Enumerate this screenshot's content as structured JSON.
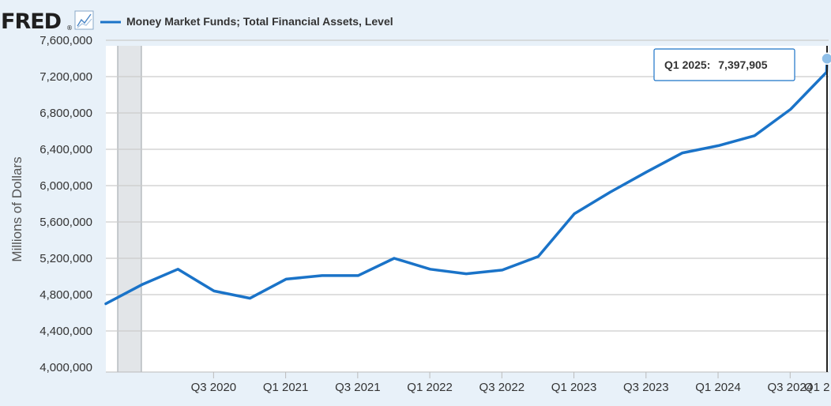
{
  "header": {
    "logo_text": "FRED",
    "logo_mark": "®",
    "logo_icon": "chart-line-icon"
  },
  "colors": {
    "background": "#e8f1f9",
    "plot_background": "#ffffff",
    "series_line": "#1a73c8",
    "gridline": "#cccccc",
    "recession_band": "#e2e5e8"
  },
  "tooltip": {
    "label": "Q1 2025:",
    "value": "7,397,905"
  },
  "chart_data": {
    "type": "line",
    "title": "",
    "xlabel": "",
    "ylabel": "Millions of Dollars",
    "ylim": [
      4000000,
      7600000
    ],
    "y_ticks": [
      4000000,
      4400000,
      4800000,
      5200000,
      5600000,
      6000000,
      6400000,
      6800000,
      7200000,
      7600000
    ],
    "y_tick_labels": [
      "4,000,000",
      "4,400,000",
      "4,800,000",
      "5,200,000",
      "5,600,000",
      "6,000,000",
      "6,400,000",
      "6,800,000",
      "7,200,000",
      "7,600,000"
    ],
    "x_tick_labels": [
      "Q3 2020",
      "Q1 2021",
      "Q3 2021",
      "Q1 2022",
      "Q3 2022",
      "Q1 2023",
      "Q3 2023",
      "Q1 2024",
      "Q3 2024",
      "Q1 2"
    ],
    "grid": true,
    "legend": "top-left",
    "recession_shading": {
      "start": "Q4 2019",
      "end": "Q2 2020"
    },
    "series": [
      {
        "name": "Money Market Funds; Total Financial Assets, Level",
        "x": [
          "Q4 2019",
          "Q1 2020",
          "Q2 2020",
          "Q3 2020",
          "Q4 2020",
          "Q1 2021",
          "Q2 2021",
          "Q3 2021",
          "Q4 2021",
          "Q1 2022",
          "Q2 2022",
          "Q3 2022",
          "Q4 2022",
          "Q1 2023",
          "Q2 2023",
          "Q3 2023",
          "Q4 2023",
          "Q1 2024",
          "Q2 2024",
          "Q3 2024",
          "Q4 2024",
          "Q1 2025"
        ],
        "values": [
          4700000,
          4910000,
          5080000,
          4840000,
          4760000,
          4970000,
          5010000,
          5010000,
          5200000,
          5080000,
          5030000,
          5070000,
          5220000,
          5690000,
          5930000,
          6150000,
          6360000,
          6440000,
          6550000,
          6840000,
          7250000,
          7397905
        ]
      }
    ]
  }
}
